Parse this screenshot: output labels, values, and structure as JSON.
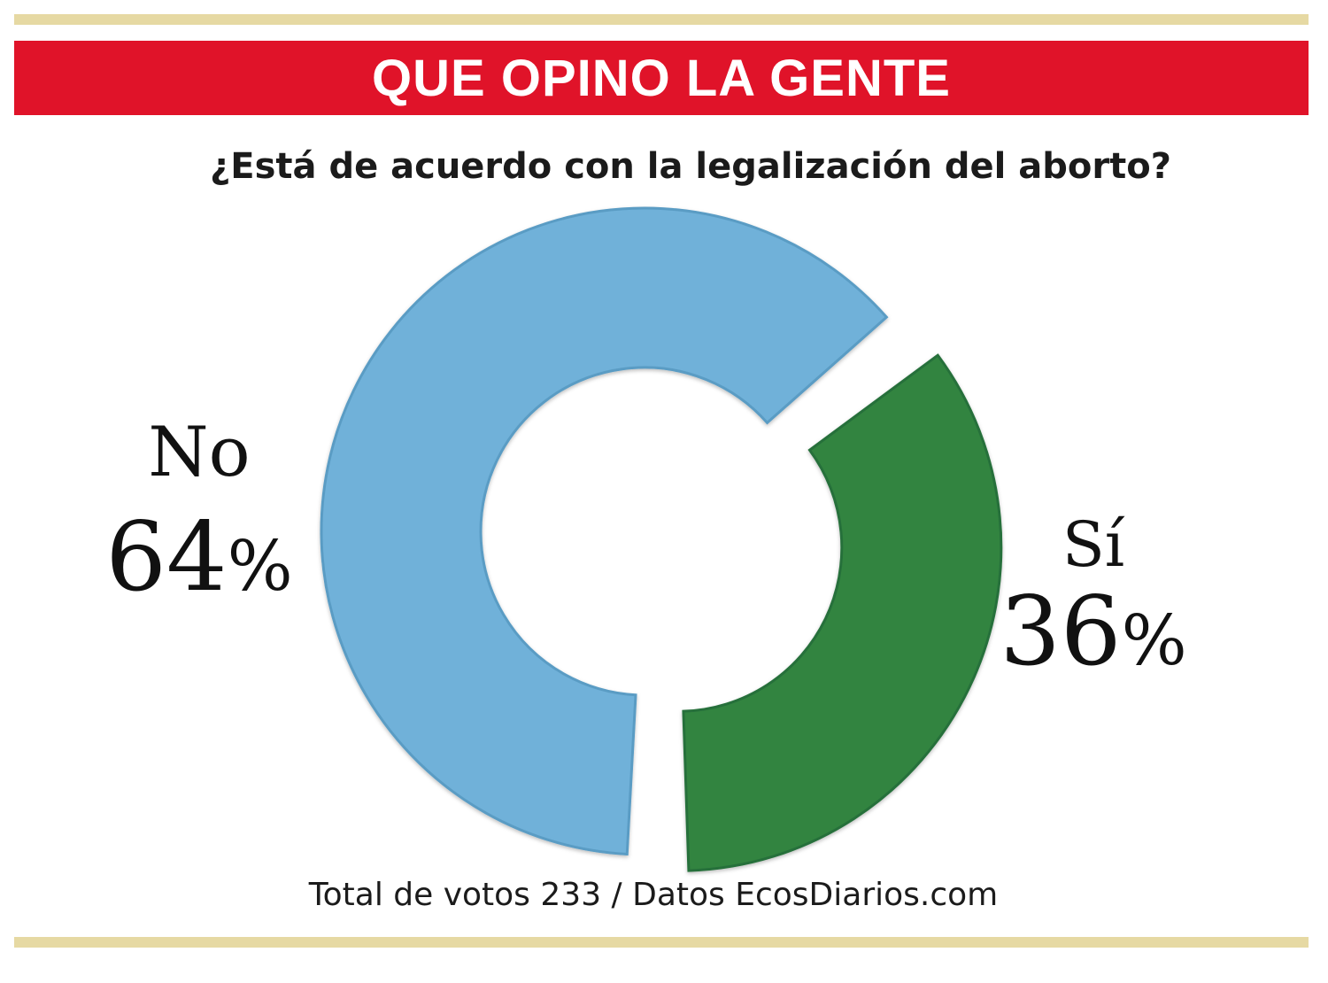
{
  "header": {
    "title": "QUE OPINO LA GENTE"
  },
  "question": "¿Está de acuerdo con la legalización del aborto?",
  "footer": {
    "note": "Total de votos 233 / Datos EcosDiarios.com"
  },
  "colors": {
    "banner": "#e01329",
    "rule": "#e6d9a3",
    "no": "#6fb1d9",
    "si": "#33843f"
  },
  "chart_data": {
    "type": "pie",
    "style": "donut",
    "title": "¿Está de acuerdo con la legalización del aborto?",
    "slices": [
      {
        "label": "No",
        "value": 64,
        "value_label": "64",
        "unit": "%",
        "color": "#6fb1d9"
      },
      {
        "label": "Sí",
        "value": 36,
        "value_label": "36",
        "unit": "%",
        "color": "#33843f",
        "exploded": true
      }
    ]
  }
}
